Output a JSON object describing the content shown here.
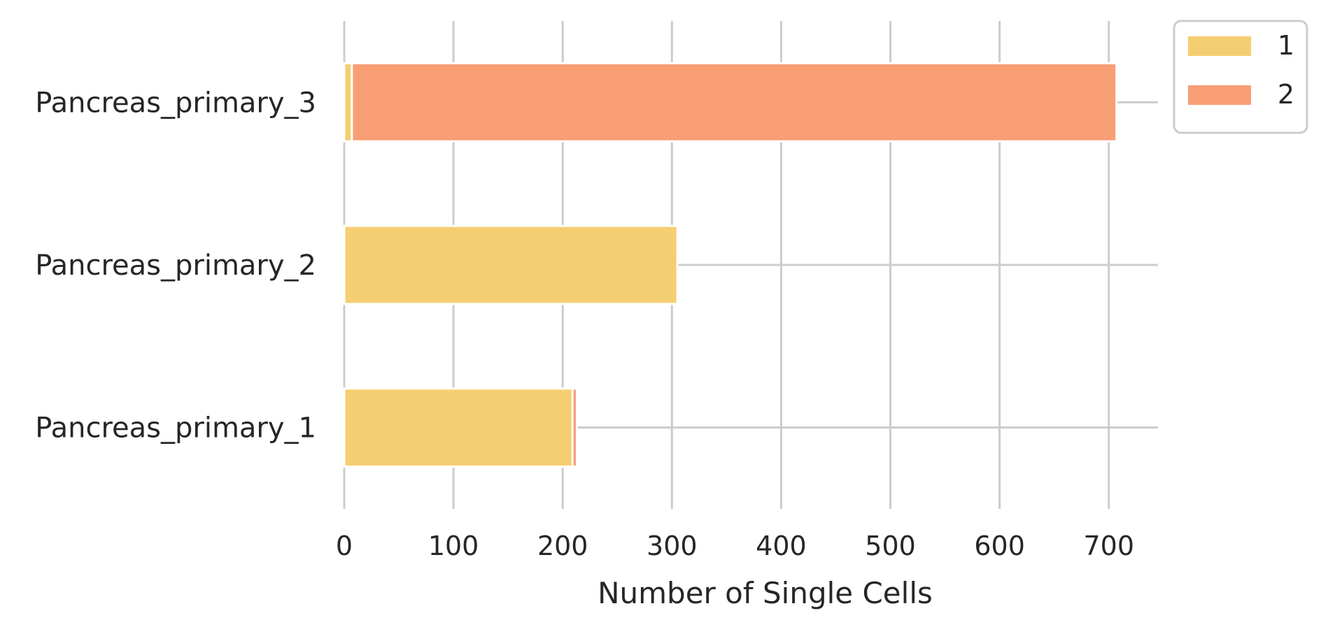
{
  "chart_data": {
    "type": "bar",
    "orientation": "horizontal",
    "stacked": true,
    "categories": [
      "Pancreas_primary_1",
      "Pancreas_primary_2",
      "Pancreas_primary_3"
    ],
    "series": [
      {
        "name": "1",
        "color": "#f5ce71",
        "values": [
          209,
          305,
          7
        ]
      },
      {
        "name": "2",
        "color": "#f89e75",
        "values": [
          4,
          0,
          700
        ]
      }
    ],
    "xlabel": "Number of Single Cells",
    "xlim": [
      0,
      745
    ],
    "xticks": [
      0,
      100,
      200,
      300,
      400,
      500,
      600,
      700
    ],
    "grid": true,
    "legend_position": "top-right outside"
  }
}
